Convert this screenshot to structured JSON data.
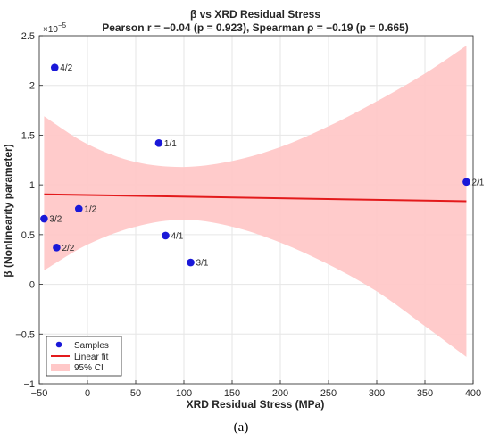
{
  "chart_data": {
    "type": "scatter",
    "title": "β vs XRD Residual Stress",
    "subtitle": "Pearson  r = −0.04  (p = 0.923),  Spearman  ρ = −0.19  (p = 0.665)",
    "xlabel": "XRD Residual Stress (MPa)",
    "ylabel": "β (Nonlinearity parameter)",
    "y_exponent": "×10",
    "y_exponent_power": "−5",
    "panel_label": "(a)",
    "xlim": [
      -50,
      400
    ],
    "ylim": [
      -1,
      2.5
    ],
    "x_ticks": [
      -50,
      0,
      50,
      100,
      150,
      200,
      250,
      300,
      350,
      400
    ],
    "x_tick_labels": [
      "−50",
      "0",
      "50",
      "100",
      "150",
      "200",
      "250",
      "300",
      "350",
      "400"
    ],
    "y_ticks": [
      -1,
      -0.5,
      0,
      0.5,
      1,
      1.5,
      2,
      2.5
    ],
    "y_tick_labels": [
      "−1",
      "−0.5",
      "0",
      "0.5",
      "1",
      "1.5",
      "2",
      "2.5"
    ],
    "grid": true,
    "legend_position": "bottom-left",
    "legend": [
      "Samples",
      "Linear fit",
      "95% CI"
    ],
    "points": [
      {
        "label": "4/2",
        "x": -34,
        "y": 2.18
      },
      {
        "label": "1/1",
        "x": 74,
        "y": 1.42
      },
      {
        "label": "2/1",
        "x": 393,
        "y": 1.03
      },
      {
        "label": "1/2",
        "x": -9,
        "y": 0.76
      },
      {
        "label": "3/2",
        "x": -45,
        "y": 0.66
      },
      {
        "label": "4/1",
        "x": 81,
        "y": 0.49
      },
      {
        "label": "2/2",
        "x": -32,
        "y": 0.37
      },
      {
        "label": "3/1",
        "x": 107,
        "y": 0.22
      }
    ],
    "fit": {
      "x": [
        -45,
        393
      ],
      "y": [
        0.905,
        0.835
      ]
    },
    "ci": {
      "x": [
        -45,
        0,
        50,
        100,
        150,
        200,
        250,
        300,
        350,
        393
      ],
      "upper": [
        1.69,
        1.41,
        1.23,
        1.18,
        1.24,
        1.38,
        1.59,
        1.84,
        2.12,
        2.4
      ],
      "lower": [
        0.14,
        0.4,
        0.58,
        0.65,
        0.58,
        0.42,
        0.2,
        -0.07,
        -0.42,
        -0.73
      ]
    },
    "colors": {
      "points": "#1a18d8",
      "fit": "#e31a1c",
      "ci_fill": "#ffc8c8",
      "grid": "#e6e6e6",
      "axis": "#262626"
    }
  }
}
